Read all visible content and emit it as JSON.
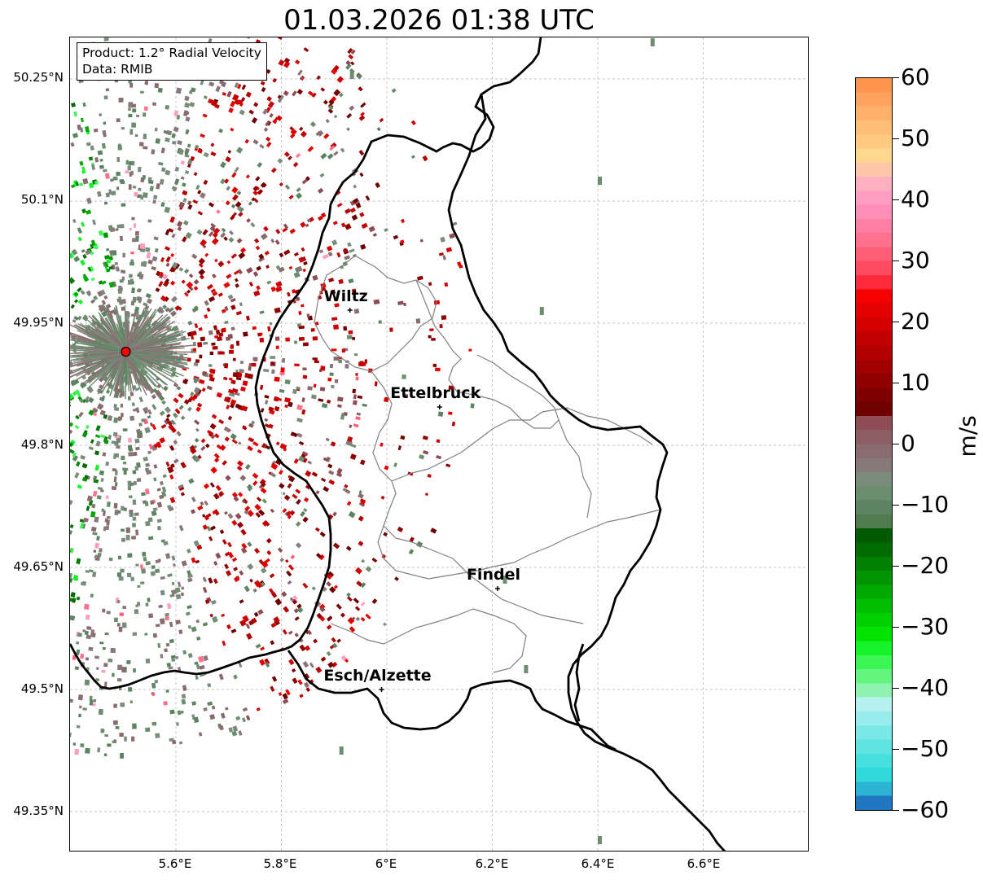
{
  "title": "01.03.2026 01:38 UTC",
  "info_box": {
    "product": "Product: 1.2° Radial Velocity",
    "data_source": "Data: RMIB"
  },
  "y_axis_labels": [
    "50.25°N",
    "50.1°N",
    "49.95°N",
    "49.8°N",
    "49.65°N",
    "49.5°N",
    "49.35°N"
  ],
  "x_axis_labels": [
    "5.6°E",
    "5.8°E",
    "6°E",
    "6.2°E",
    "6.4°E",
    "6.6°E"
  ],
  "cities": [
    {
      "name": "Wiltz",
      "lon": 5.93,
      "lat": 49.966
    },
    {
      "name": "Ettelbruck",
      "lon": 6.1,
      "lat": 49.847
    },
    {
      "name": "Findel",
      "lon": 6.21,
      "lat": 49.624
    },
    {
      "name": "Esch/Alzette",
      "lon": 5.99,
      "lat": 49.5
    }
  ],
  "radar_site": {
    "lon": 5.505,
    "lat": 49.915,
    "color": "#ff0000"
  },
  "colorbar": {
    "unit": "m/s",
    "min": -60,
    "max": 60,
    "tick_labels": [
      "60",
      "50",
      "40",
      "30",
      "20",
      "10",
      "0",
      "−10",
      "−20",
      "−30",
      "−40",
      "−50",
      "−60"
    ],
    "colors": [
      "#1e77c0",
      "#2bb4d4",
      "#30dadb",
      "#46e0df",
      "#5fe4e2",
      "#7ae8e6",
      "#97edeb",
      "#b5f1ef",
      "#8ff3b0",
      "#64f57f",
      "#3cf654",
      "#14f429",
      "#00e400",
      "#00d000",
      "#00bd00",
      "#00a900",
      "#009500",
      "#008100",
      "#006b00",
      "#005a00",
      "#4f7b4f",
      "#5d8462",
      "#6b8e6e",
      "#7a8c7c",
      "#877879",
      "#8a6c70",
      "#8c5d63",
      "#8e4d55",
      "#700000",
      "#7f0000",
      "#900000",
      "#a10000",
      "#b20000",
      "#c30000",
      "#d40000",
      "#e50000",
      "#f60000",
      "#ff2a3c",
      "#ff4a5f",
      "#ff5e77",
      "#ff718d",
      "#ff80a2",
      "#ff8fb6",
      "#ff9ec0",
      "#ffb0c0",
      "#ffc6a9",
      "#ffd890",
      "#ffca80",
      "#ffbd75",
      "#ffb06a",
      "#ffa35e",
      "#ff9650"
    ]
  },
  "map": {
    "lon_range": [
      5.4,
      6.8
    ],
    "lat_range": [
      49.3,
      50.3
    ]
  }
}
